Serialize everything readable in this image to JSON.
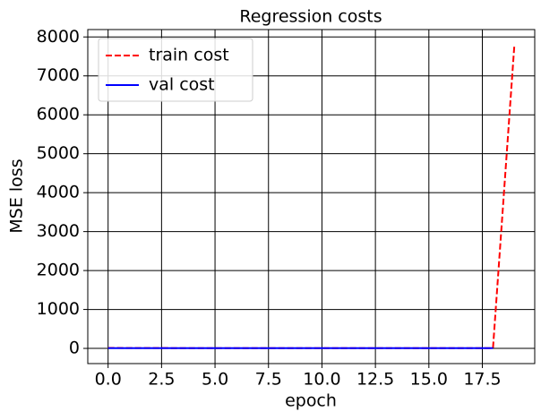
{
  "chart_data": {
    "type": "line",
    "title": "Regression costs",
    "x_label": "epoch",
    "y_label": "MSE loss",
    "series": [
      {
        "name": "train cost",
        "color": "#ff0000",
        "dash": true,
        "x": [
          0,
          1,
          2,
          3,
          4,
          5,
          6,
          7,
          8,
          9,
          10,
          11,
          12,
          13,
          14,
          15,
          16,
          17,
          18,
          19
        ],
        "values": [
          12,
          10,
          10,
          9,
          9,
          9,
          8,
          8,
          8,
          8,
          8,
          8,
          8,
          8,
          8,
          8,
          8,
          8,
          8,
          7800
        ]
      },
      {
        "name": "val cost",
        "color": "#0000ff",
        "dash": false,
        "x": [
          0,
          1,
          2,
          3,
          4,
          5,
          6,
          7,
          8,
          9,
          10,
          11,
          12,
          13,
          14,
          15,
          16,
          17,
          18
        ],
        "values": [
          6,
          6,
          5,
          5,
          5,
          5,
          5,
          5,
          5,
          5,
          5,
          5,
          5,
          5,
          5,
          5,
          5,
          5,
          5
        ]
      }
    ],
    "xlim": [
      -0.95,
      19.95
    ],
    "ylim": [
      -390,
      8190
    ],
    "xticks": [
      {
        "value": 0,
        "label": "0.0"
      },
      2.5,
      {
        "value": 5,
        "label": "5.0"
      },
      7.5,
      {
        "value": 10,
        "label": "10.0"
      },
      12.5,
      {
        "value": 15,
        "label": "15.0"
      },
      17.5
    ],
    "yticks": [
      0,
      1000,
      2000,
      3000,
      4000,
      5000,
      6000,
      7000,
      8000
    ],
    "grid": true,
    "legend": "upper left"
  }
}
